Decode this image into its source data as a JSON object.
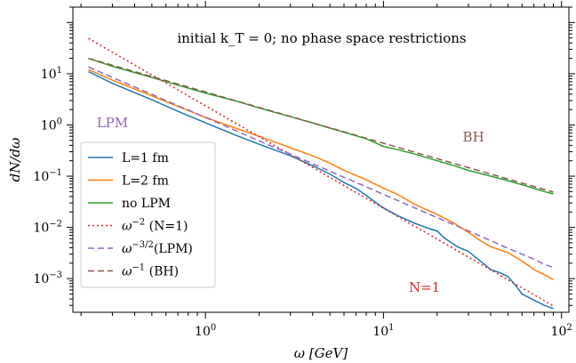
{
  "chart_data": {
    "type": "line",
    "title": "",
    "xlabel": "ω [GeV]",
    "ylabel": "dN/dω",
    "xscale": "log",
    "yscale": "log",
    "xlim": [
      0.18,
      110
    ],
    "ylim": [
      0.00022,
      200
    ],
    "grid": false,
    "legend": "lower-left",
    "xticks": [
      {
        "value": 1,
        "label": "10",
        "exp": "0"
      },
      {
        "value": 10,
        "label": "10",
        "exp": "1"
      },
      {
        "value": 100,
        "label": "10",
        "exp": "2"
      }
    ],
    "yticks": [
      {
        "value": 0.001,
        "label": "10",
        "exp": "−3"
      },
      {
        "value": 0.01,
        "label": "10",
        "exp": "−2"
      },
      {
        "value": 0.1,
        "label": "10",
        "exp": "−1"
      },
      {
        "value": 1,
        "label": "10",
        "exp": "0"
      },
      {
        "value": 10,
        "label": "10",
        "exp": "1"
      }
    ],
    "annotations": [
      {
        "text": "initial k_T = 0; no phase space restrictions",
        "x": 4.5,
        "y": 40,
        "color": "#000000"
      },
      {
        "text": "LPM",
        "x": 0.3,
        "y": 0.9,
        "color": "#9467bd"
      },
      {
        "text": "BH",
        "x": 32,
        "y": 0.48,
        "color": "#8c564b"
      },
      {
        "text": "N=1",
        "x": 17,
        "y": 0.00055,
        "color": "#d62728"
      }
    ],
    "series": [
      {
        "name": "L=1 fm",
        "label": "L=1 fm",
        "color": "#1f77b4",
        "style": "solid",
        "points": [
          [
            0.22,
            11
          ],
          [
            0.3,
            6.5
          ],
          [
            0.5,
            3.1
          ],
          [
            0.7,
            1.85
          ],
          [
            1.0,
            1.1
          ],
          [
            1.5,
            0.62
          ],
          [
            2.0,
            0.42
          ],
          [
            3.0,
            0.25
          ],
          [
            4.0,
            0.16
          ],
          [
            5.0,
            0.11
          ],
          [
            6.0,
            0.075
          ],
          [
            7.0,
            0.058
          ],
          [
            8.0,
            0.042
          ],
          [
            10.0,
            0.024
          ],
          [
            12.0,
            0.017
          ],
          [
            15.0,
            0.012
          ],
          [
            18.0,
            0.0095
          ],
          [
            20.0,
            0.0085
          ],
          [
            22.0,
            0.0062
          ],
          [
            26.0,
            0.0042
          ],
          [
            30.0,
            0.0034
          ],
          [
            35.0,
            0.0022
          ],
          [
            40.0,
            0.0015
          ],
          [
            45.0,
            0.0013
          ],
          [
            50.0,
            0.0011
          ],
          [
            55.0,
            0.00075
          ],
          [
            60.0,
            0.0005
          ],
          [
            70.0,
            0.00038
          ],
          [
            80.0,
            0.0003
          ],
          [
            90.0,
            0.00026
          ]
        ]
      },
      {
        "name": "L=2 fm",
        "label": "L=2 fm",
        "color": "#ff7f0e",
        "style": "solid",
        "points": [
          [
            0.22,
            12
          ],
          [
            0.3,
            7.5
          ],
          [
            0.5,
            3.7
          ],
          [
            0.7,
            2.3
          ],
          [
            1.0,
            1.4
          ],
          [
            1.5,
            0.85
          ],
          [
            2.0,
            0.6
          ],
          [
            3.0,
            0.36
          ],
          [
            4.0,
            0.25
          ],
          [
            5.0,
            0.18
          ],
          [
            6.0,
            0.13
          ],
          [
            8.0,
            0.085
          ],
          [
            10.0,
            0.058
          ],
          [
            12.0,
            0.044
          ],
          [
            15.0,
            0.028
          ],
          [
            20.0,
            0.018
          ],
          [
            25.0,
            0.012
          ],
          [
            30.0,
            0.008
          ],
          [
            35.0,
            0.0055
          ],
          [
            40.0,
            0.0042
          ],
          [
            50.0,
            0.0032
          ],
          [
            60.0,
            0.0022
          ],
          [
            70.0,
            0.0015
          ],
          [
            80.0,
            0.0012
          ],
          [
            90.0,
            0.00095
          ]
        ]
      },
      {
        "name": "no LPM",
        "label": "no LPM",
        "color": "#2ca02c",
        "style": "solid",
        "points": [
          [
            0.22,
            20
          ],
          [
            0.3,
            14
          ],
          [
            0.5,
            8.5
          ],
          [
            0.7,
            6.0
          ],
          [
            1.0,
            4.2
          ],
          [
            1.5,
            2.9
          ],
          [
            2.0,
            2.15
          ],
          [
            3.0,
            1.45
          ],
          [
            4.0,
            1.1
          ],
          [
            6.0,
            0.72
          ],
          [
            8.0,
            0.54
          ],
          [
            10.0,
            0.38
          ],
          [
            12.0,
            0.33
          ],
          [
            15.0,
            0.27
          ],
          [
            20.0,
            0.2
          ],
          [
            25.0,
            0.16
          ],
          [
            30.0,
            0.13
          ],
          [
            40.0,
            0.1
          ],
          [
            50.0,
            0.082
          ],
          [
            60.0,
            0.068
          ],
          [
            70.0,
            0.058
          ],
          [
            80.0,
            0.05
          ],
          [
            90.0,
            0.045
          ]
        ]
      },
      {
        "name": "ω^−2 (N=1)",
        "label": "ω",
        "exp": "−2",
        "suffix": " (N=1)",
        "color": "#d62728",
        "style": "dotted",
        "points": [
          [
            0.22,
            48.9
          ],
          [
            0.3,
            26.3
          ],
          [
            0.5,
            9.48
          ],
          [
            0.7,
            4.84
          ],
          [
            1.0,
            2.37
          ],
          [
            1.5,
            1.05
          ],
          [
            2.0,
            0.593
          ],
          [
            3.0,
            0.263
          ],
          [
            4.0,
            0.148
          ],
          [
            6.0,
            0.0658
          ],
          [
            8.0,
            0.037
          ],
          [
            10.0,
            0.0237
          ],
          [
            15.0,
            0.0105
          ],
          [
            20.0,
            0.00593
          ],
          [
            30.0,
            0.00263
          ],
          [
            40.0,
            0.00148
          ],
          [
            50.0,
            0.000948
          ],
          [
            60.0,
            0.000658
          ],
          [
            70.0,
            0.000484
          ],
          [
            80.0,
            0.00037
          ],
          [
            90.0,
            0.000293
          ]
        ]
      },
      {
        "name": "ω^−3/2(LPM)",
        "label": "ω",
        "exp": "−3/2",
        "suffix": "(LPM)",
        "color": "#9467bd",
        "style": "dashed",
        "points": [
          [
            0.22,
            13.6
          ],
          [
            0.3,
            8.49
          ],
          [
            0.5,
            3.95
          ],
          [
            0.7,
            2.38
          ],
          [
            1.0,
            1.4
          ],
          [
            1.5,
            0.76
          ],
          [
            2.0,
            0.49
          ],
          [
            3.0,
            0.27
          ],
          [
            4.0,
            0.175
          ],
          [
            6.0,
            0.095
          ],
          [
            8.0,
            0.062
          ],
          [
            10.0,
            0.044
          ],
          [
            15.0,
            0.024
          ],
          [
            20.0,
            0.0156
          ],
          [
            30.0,
            0.0085
          ],
          [
            40.0,
            0.0055
          ],
          [
            50.0,
            0.0039
          ],
          [
            60.0,
            0.003
          ],
          [
            70.0,
            0.0024
          ],
          [
            80.0,
            0.0019
          ],
          [
            90.0,
            0.00165
          ]
        ]
      },
      {
        "name": "ω^−1 (BH)",
        "label": "ω",
        "exp": "−1",
        "suffix": " (BH)",
        "color": "#8c564b",
        "style": "dashed",
        "points": [
          [
            0.22,
            20
          ],
          [
            0.3,
            14.7
          ],
          [
            0.5,
            8.8
          ],
          [
            0.7,
            6.29
          ],
          [
            1.0,
            4.4
          ],
          [
            1.5,
            2.93
          ],
          [
            2.0,
            2.2
          ],
          [
            3.0,
            1.47
          ],
          [
            4.0,
            1.1
          ],
          [
            6.0,
            0.733
          ],
          [
            8.0,
            0.55
          ],
          [
            10.0,
            0.44
          ],
          [
            15.0,
            0.293
          ],
          [
            20.0,
            0.22
          ],
          [
            30.0,
            0.147
          ],
          [
            40.0,
            0.11
          ],
          [
            50.0,
            0.088
          ],
          [
            60.0,
            0.0733
          ],
          [
            70.0,
            0.0629
          ],
          [
            80.0,
            0.055
          ],
          [
            90.0,
            0.0489
          ]
        ]
      }
    ]
  }
}
